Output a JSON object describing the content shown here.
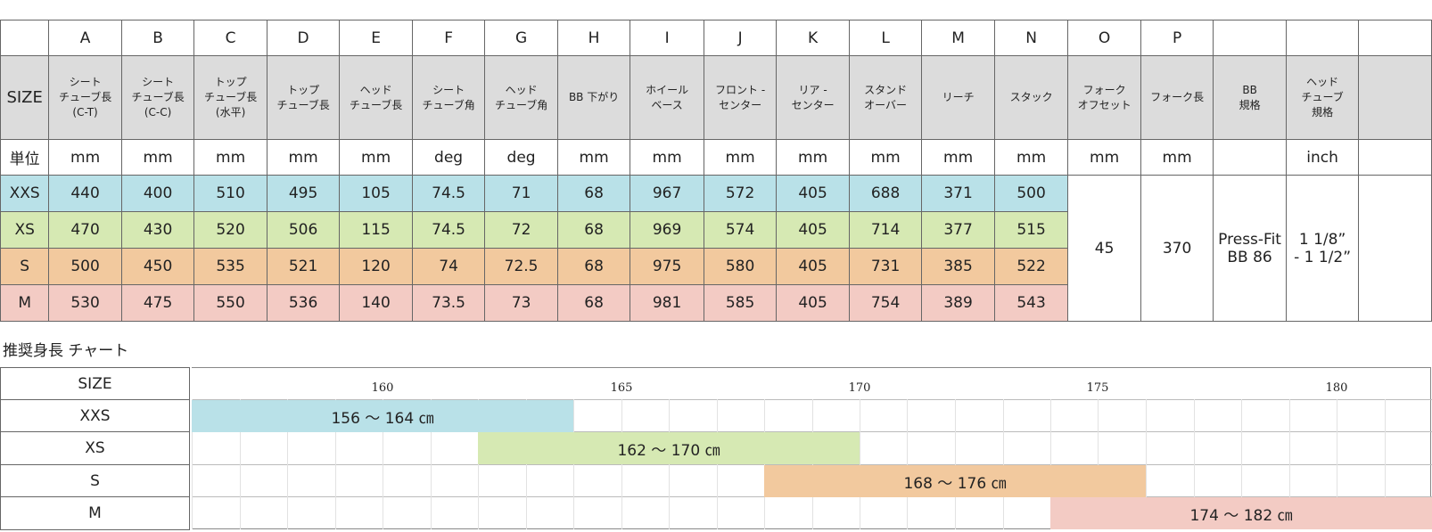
{
  "geometry": {
    "letters": [
      "A",
      "B",
      "C",
      "D",
      "E",
      "F",
      "G",
      "H",
      "I",
      "J",
      "K",
      "L",
      "M",
      "N",
      "O",
      "P",
      "",
      "",
      ""
    ],
    "size_label": "SIZE",
    "headers": [
      "シート\nチューブ長\n(C-T)",
      "シート\nチューブ長\n(C-C)",
      "トップ\nチューブ長\n(水平)",
      "トップ\nチューブ長",
      "ヘッド\nチューブ長",
      "シート\nチューブ角",
      "ヘッド\nチューブ角",
      "BB 下がり",
      "ホイール\nベース",
      "フロント -\nセンター",
      "リア -\nセンター",
      "スタンド\nオーバー",
      "リーチ",
      "スタック",
      "フォーク\nオフセット",
      "フォーク長",
      "BB\n規格",
      "ヘッド\nチューブ\n規格",
      ""
    ],
    "unit_label": "単位",
    "units": [
      "mm",
      "mm",
      "mm",
      "mm",
      "mm",
      "deg",
      "deg",
      "mm",
      "mm",
      "mm",
      "mm",
      "mm",
      "mm",
      "mm",
      "mm",
      "mm",
      "",
      "inch",
      ""
    ],
    "rows": [
      {
        "size": "XXS",
        "values": [
          "440",
          "400",
          "510",
          "495",
          "105",
          "74.5",
          "71",
          "68",
          "967",
          "572",
          "405",
          "688",
          "371",
          "500"
        ]
      },
      {
        "size": "XS",
        "values": [
          "470",
          "430",
          "520",
          "506",
          "115",
          "74.5",
          "72",
          "68",
          "969",
          "574",
          "405",
          "714",
          "377",
          "515"
        ]
      },
      {
        "size": "S",
        "values": [
          "500",
          "450",
          "535",
          "521",
          "120",
          "74",
          "72.5",
          "68",
          "975",
          "580",
          "405",
          "731",
          "385",
          "522"
        ]
      },
      {
        "size": "M",
        "values": [
          "530",
          "475",
          "550",
          "536",
          "140",
          "73.5",
          "73",
          "68",
          "981",
          "585",
          "405",
          "754",
          "389",
          "543"
        ]
      }
    ],
    "shared": {
      "fork_offset": "45",
      "fork_length": "370",
      "bb_standard": "Press-Fit\nBB 86",
      "head_tube_standard": "1 1/8”\n- 1 1/2”"
    },
    "row_colors": {
      "XXS": "#b9e1e8",
      "XS": "#d6e9b3",
      "S": "#f2c99e",
      "M": "#f3cbc4"
    }
  },
  "height_chart": {
    "title": "推奨身長 チャート",
    "size_label": "SIZE",
    "axis_range": [
      156,
      182
    ],
    "ticks": [
      "160",
      "165",
      "170",
      "175",
      "180"
    ],
    "bars": [
      {
        "size": "XXS",
        "from": 156,
        "to": 164,
        "label": "156 〜 164 ㎝",
        "color": "#b9e1e8"
      },
      {
        "size": "XS",
        "from": 162,
        "to": 170,
        "label": "162 〜 170 ㎝",
        "color": "#d6e9b3"
      },
      {
        "size": "S",
        "from": 168,
        "to": 176,
        "label": "168 〜 176 ㎝",
        "color": "#f2c99e"
      },
      {
        "size": "M",
        "from": 174,
        "to": 182,
        "label": "174 〜 182 ㎝",
        "color": "#f3cbc4"
      }
    ]
  }
}
